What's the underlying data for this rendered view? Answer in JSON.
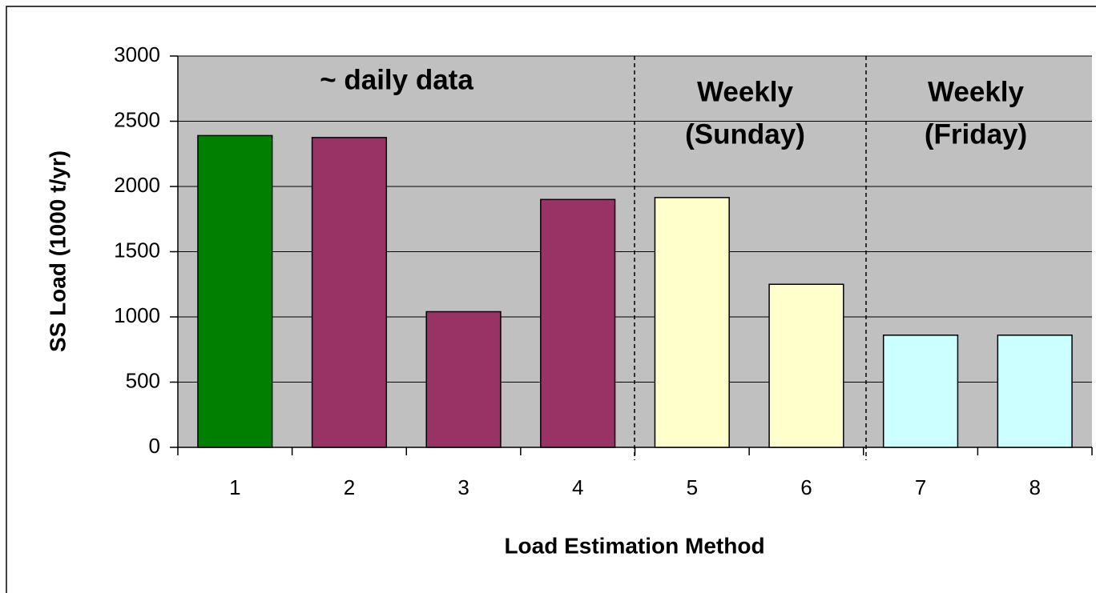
{
  "chart_data": {
    "type": "bar",
    "categories": [
      "1",
      "2",
      "3",
      "4",
      "5",
      "6",
      "7",
      "8"
    ],
    "values": [
      2390,
      2375,
      1040,
      1900,
      1915,
      1250,
      860,
      860
    ],
    "colors": [
      "#007f00",
      "#993366",
      "#993366",
      "#993366",
      "#ffffcc",
      "#ffffcc",
      "#ccffff",
      "#ccffff"
    ],
    "x_label": "Load Estimation Method",
    "y_label": "SS Load (1000 t/yr)",
    "annotations": [
      [
        "~ daily data"
      ],
      [
        "Weekly",
        "(Sunday)"
      ],
      [
        "Weekly",
        "(Friday)"
      ]
    ],
    "ylim": [
      0,
      3000
    ],
    "yticks": [
      0,
      500,
      1000,
      1500,
      2000,
      2500,
      3000
    ],
    "grid": true
  }
}
